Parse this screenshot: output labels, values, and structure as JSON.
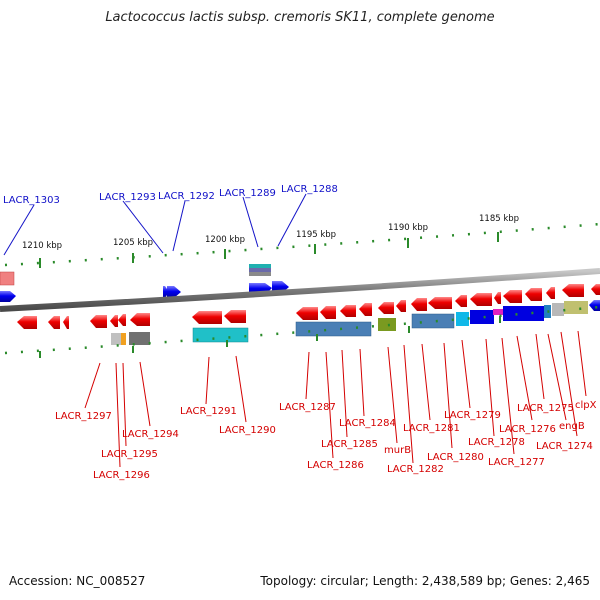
{
  "title": "Lactococcus lactis subsp. cremoris SK11, complete genome",
  "footer": {
    "accession": "Accession: NC_008527",
    "summary": "Topology: circular; Length: 2,438,589 bp; Genes: 2,465"
  },
  "scale_labels": [
    "1210 kbp",
    "1205 kbp",
    "1200 kbp",
    "1195 kbp",
    "1190 kbp",
    "1185 kbp"
  ],
  "forward_genes": [
    "LACR_1303",
    "LACR_1293",
    "LACR_1292",
    "LACR_1289",
    "LACR_1288"
  ],
  "reverse_genes": [
    "LACR_1297",
    "LACR_1296",
    "LACR_1295",
    "LACR_1294",
    "LACR_1291",
    "LACR_1290",
    "LACR_1287",
    "LACR_1286",
    "LACR_1285",
    "LACR_1284",
    "murB",
    "LACR_1282",
    "LACR_1281",
    "LACR_1280",
    "LACR_1279",
    "LACR_1278",
    "LACR_1277",
    "LACR_1276",
    "LACR_1275",
    "engB",
    "LACR_1274",
    "clpX"
  ],
  "colors": {
    "forward_gene": "#1010e0",
    "reverse_gene": "#e80000",
    "label_forward": "#1010c8",
    "label_reverse": "#d40000",
    "backbone": "#8c8c8c",
    "ticks": "#2a8a2a"
  }
}
